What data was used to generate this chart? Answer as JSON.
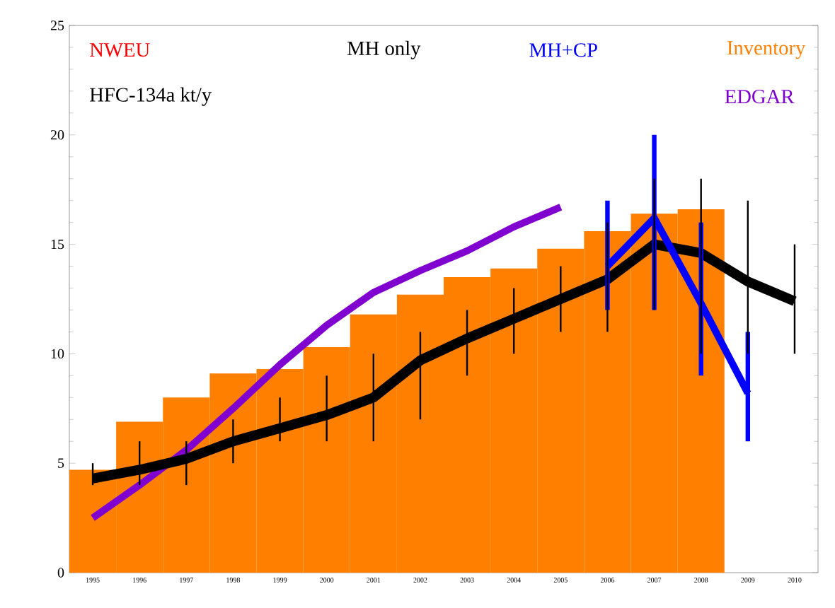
{
  "chart_data": {
    "type": "bar",
    "categories": [
      "1995",
      "1996",
      "1997",
      "1998",
      "1999",
      "2000",
      "2001",
      "2002",
      "2003",
      "2004",
      "2005",
      "2006",
      "2007",
      "2008",
      "2009",
      "2010"
    ],
    "annotations": [
      "NWEU",
      "HFC-134a kt/y"
    ],
    "ylim": [
      0,
      25
    ],
    "yticks": [
      0,
      5,
      10,
      15,
      20,
      25
    ],
    "legend": "top",
    "series": [
      {
        "name": "Inventory",
        "color": "#ff8000",
        "values": [
          4.7,
          6.9,
          8.0,
          9.1,
          9.3,
          10.3,
          11.8,
          12.7,
          13.5,
          13.9,
          14.8,
          15.6,
          16.4,
          16.6,
          null,
          null
        ]
      },
      {
        "name": "EDGAR",
        "type": "line",
        "color": "#8000d0",
        "values": [
          2.5,
          4.0,
          5.6,
          7.5,
          9.5,
          11.3,
          12.8,
          13.8,
          14.7,
          15.8,
          16.7,
          null,
          null,
          null,
          null,
          null
        ]
      },
      {
        "name": "MH only",
        "type": "line",
        "color": "#000000",
        "values": [
          4.3,
          4.7,
          5.2,
          6.0,
          6.6,
          7.2,
          8.0,
          9.7,
          10.7,
          11.6,
          12.5,
          13.4,
          15.0,
          14.6,
          13.3,
          12.4
        ],
        "errors": [
          [
            4,
            5
          ],
          [
            4,
            6
          ],
          [
            4,
            6
          ],
          [
            5,
            7
          ],
          [
            6,
            8
          ],
          [
            6,
            9
          ],
          [
            6,
            10
          ],
          [
            7,
            11
          ],
          [
            9,
            12
          ],
          [
            10,
            13
          ],
          [
            11,
            14
          ],
          [
            11,
            16
          ],
          [
            12,
            18
          ],
          [
            10,
            18
          ],
          [
            10,
            17
          ],
          [
            10,
            15
          ]
        ]
      },
      {
        "name": "MH+CP",
        "type": "line",
        "color": "#0000ff",
        "values": [
          null,
          null,
          null,
          null,
          null,
          null,
          null,
          null,
          null,
          null,
          null,
          14.0,
          16.2,
          12.3,
          8.2,
          null
        ],
        "errors": [
          null,
          null,
          null,
          null,
          null,
          null,
          null,
          null,
          null,
          null,
          null,
          [
            12,
            17
          ],
          [
            12,
            20
          ],
          [
            9,
            16
          ],
          [
            6,
            11
          ],
          null
        ]
      }
    ]
  }
}
